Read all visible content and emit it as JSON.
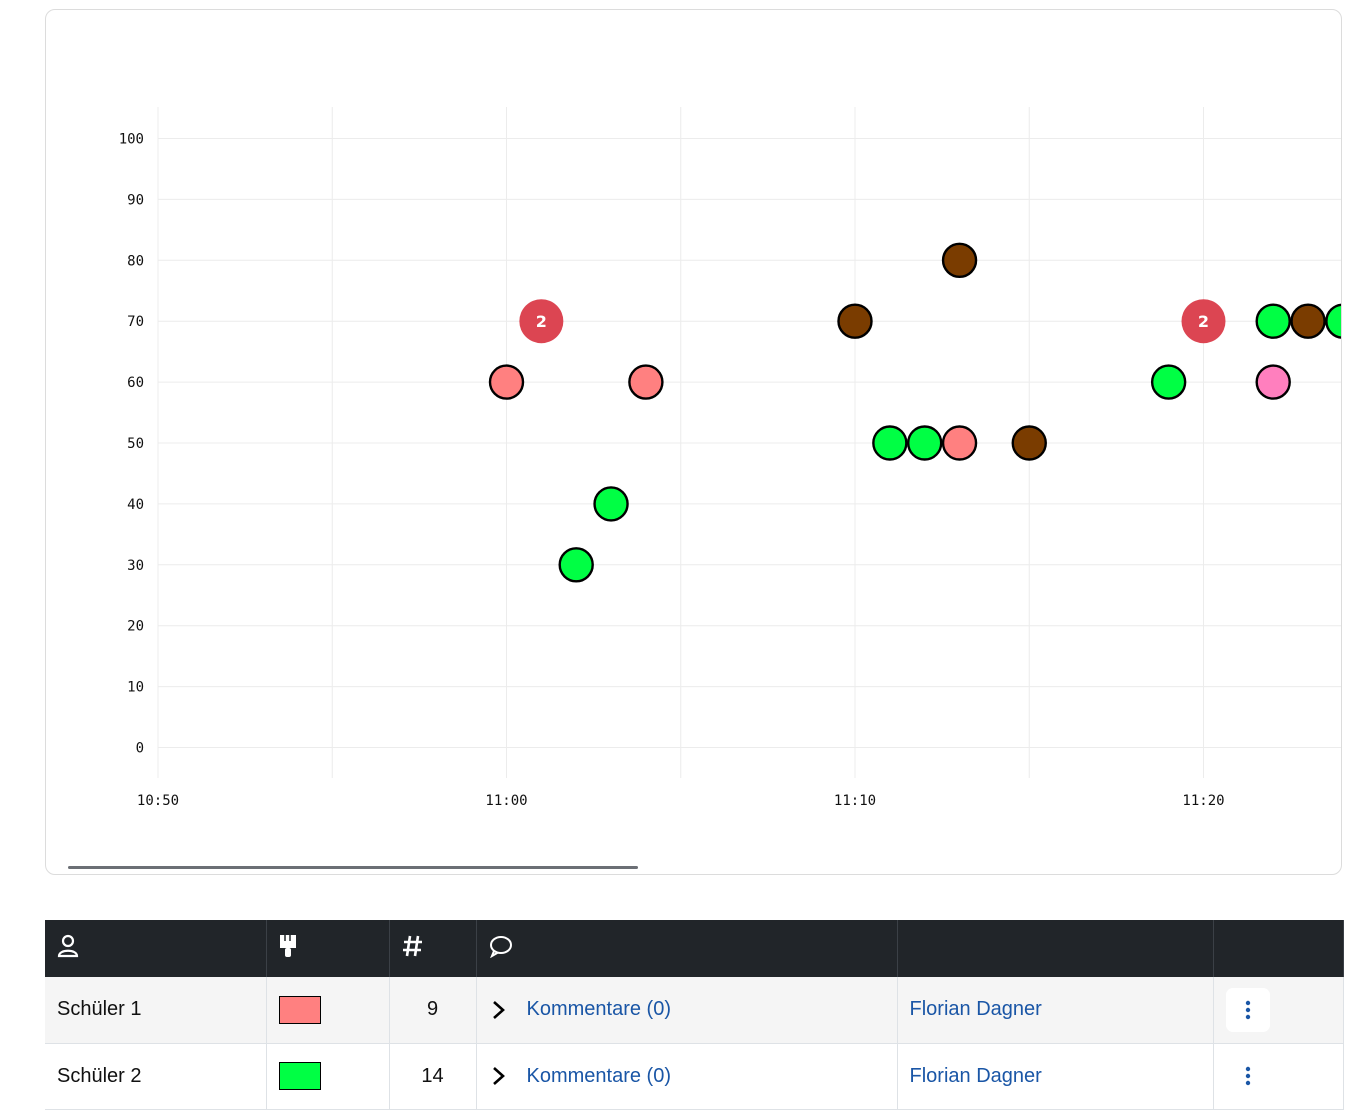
{
  "colors": {
    "salmon": "#ff8080",
    "green": "#00ff44",
    "brown": "#7a3c00",
    "pink": "#ff7fbe",
    "cluster_red": "#dc4552",
    "header_bg": "#212529",
    "link": "#1a56a6"
  },
  "chart_data": {
    "type": "scatter",
    "x_axis": {
      "ticks": [
        "10:50",
        "11:00",
        "11:10",
        "11:20"
      ],
      "range_minutes": [
        0,
        34.2
      ]
    },
    "y_axis": {
      "ticks": [
        "0",
        "10",
        "20",
        "30",
        "40",
        "50",
        "60",
        "70",
        "80",
        "90",
        "100"
      ],
      "range": [
        -5,
        105
      ]
    },
    "grid": true,
    "points": [
      {
        "x": "11:00",
        "y": 60,
        "color": "salmon"
      },
      {
        "x": "11:02",
        "y": 30,
        "color": "green"
      },
      {
        "x": "11:03",
        "y": 40,
        "color": "green"
      },
      {
        "x": "11:04",
        "y": 60,
        "color": "salmon"
      },
      {
        "x": "11:10",
        "y": 70,
        "color": "brown"
      },
      {
        "x": "11:11",
        "y": 50,
        "color": "green"
      },
      {
        "x": "11:12",
        "y": 50,
        "color": "green"
      },
      {
        "x": "11:13",
        "y": 50,
        "color": "salmon"
      },
      {
        "x": "11:13",
        "y": 80,
        "color": "brown"
      },
      {
        "x": "11:15",
        "y": 50,
        "color": "brown"
      },
      {
        "x": "11:19",
        "y": 60,
        "color": "green"
      },
      {
        "x": "11:22",
        "y": 70,
        "color": "green"
      },
      {
        "x": "11:22",
        "y": 60,
        "color": "pink"
      },
      {
        "x": "11:23",
        "y": 70,
        "color": "brown"
      },
      {
        "x": "11:24",
        "y": 70,
        "color": "green"
      }
    ],
    "clusters": [
      {
        "x": "11:01",
        "y": 70,
        "count": "2"
      },
      {
        "x": "11:20",
        "y": 70,
        "count": "2"
      }
    ]
  },
  "table": {
    "header_icons": [
      "person-icon",
      "paintbrush-icon",
      "hash-icon",
      "comment-icon"
    ],
    "rows": [
      {
        "name": "Schüler 1",
        "color": "#ff8080",
        "count": "9",
        "comments": "Kommentare (0)",
        "teacher": "Florian Dagner"
      },
      {
        "name": "Schüler 2",
        "color": "#00ff44",
        "count": "14",
        "comments": "Kommentare (0)",
        "teacher": "Florian Dagner"
      }
    ]
  }
}
